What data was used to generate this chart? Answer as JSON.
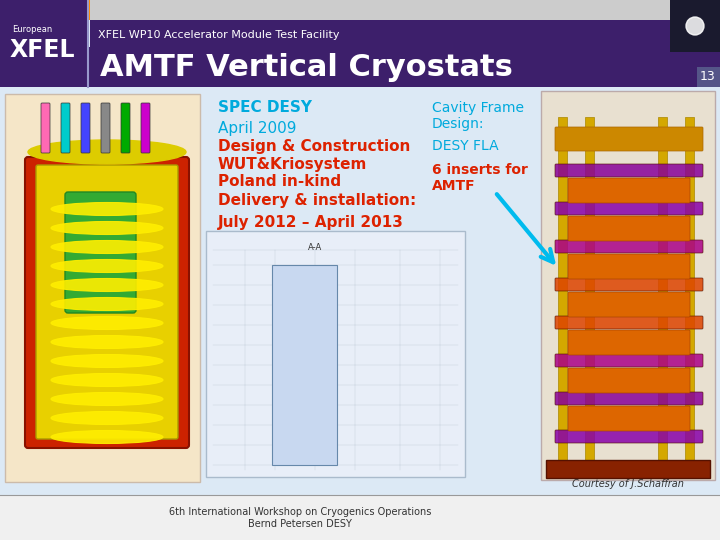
{
  "bg_color": "#dce9f5",
  "header_bar_color": "#3d1f6b",
  "header_text": "XFEL WP10 Accelerator Module Test Facility",
  "header_text_color": "#ffffff",
  "header_text_size": 8,
  "title_text": "AMTF Vertical Cryostats",
  "title_text_color": "#ffffff",
  "title_text_size": 22,
  "slide_number": "13",
  "slide_number_color": "#ffffff",
  "slide_number_size": 9,
  "footer_text": "6th International Workshop on Cryogenics Operations\nBernd Petersen DESY",
  "footer_text_color": "#333333",
  "footer_text_size": 7,
  "spec_label": "SPEC DESY",
  "spec_color": "#00aadd",
  "spec_size": 11,
  "lines": [
    {
      "text": "April 2009",
      "color": "#00aadd",
      "size": 11,
      "bold": false
    },
    {
      "text": "Design & Construction",
      "color": "#dd2200",
      "size": 11,
      "bold": true
    },
    {
      "text": "WUT&Kriosystem",
      "color": "#dd2200",
      "size": 11,
      "bold": true
    },
    {
      "text": "Poland in-kind",
      "color": "#dd2200",
      "size": 11,
      "bold": true
    },
    {
      "text": "Delivery & installation:",
      "color": "#dd2200",
      "size": 11,
      "bold": true
    },
    {
      "text": "July 2012 – April 2013",
      "color": "#dd2200",
      "size": 11,
      "bold": true
    }
  ],
  "right_lines": [
    {
      "text": "Cavity Frame",
      "color": "#00aadd",
      "size": 10,
      "bold": false
    },
    {
      "text": "Design:",
      "color": "#00aadd",
      "size": 10,
      "bold": false
    },
    {
      "text": "DESY FLA",
      "color": "#00aadd",
      "size": 10,
      "bold": false
    },
    {
      "text": "6 inserts for",
      "color": "#dd2200",
      "size": 10,
      "bold": true
    },
    {
      "text": "AMTF",
      "color": "#dd2200",
      "size": 10,
      "bold": true
    }
  ],
  "courtesy_text": "Courtesy of J.Schaffran",
  "courtesy_color": "#333333",
  "courtesy_size": 7,
  "top_colors": [
    "#8b4513",
    "#228b22",
    "#4169e1",
    "#ffd700",
    "#ff8c00"
  ]
}
